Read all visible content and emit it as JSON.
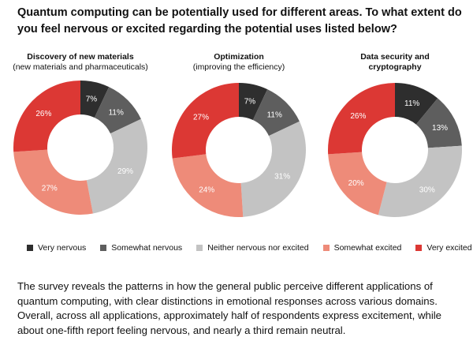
{
  "title": "Quantum computing can be potentially used for different areas. To what extent do you feel nervous or excited regarding the potential uses listed below?",
  "chart_data": [
    {
      "type": "pie",
      "donut": true,
      "title": "Discovery of new materials",
      "subtitle": "(new materials and pharmaceuticals)",
      "categories": [
        "Very nervous",
        "Somewhat nervous",
        "Neither nervous nor excited",
        "Somewhat excited",
        "Very excited"
      ],
      "values": [
        7,
        11,
        29,
        27,
        26
      ],
      "labels": [
        "7%",
        "11%",
        "29%",
        "27%",
        "26%"
      ]
    },
    {
      "type": "pie",
      "donut": true,
      "title": "Optimization",
      "subtitle": "(improving the efficiency)",
      "categories": [
        "Very nervous",
        "Somewhat nervous",
        "Neither nervous nor excited",
        "Somewhat excited",
        "Very excited"
      ],
      "values": [
        7,
        11,
        31,
        24,
        27
      ],
      "labels": [
        "7%",
        "11%",
        "31%",
        "24%",
        "27%"
      ]
    },
    {
      "type": "pie",
      "donut": true,
      "title": "Data security and cryptography",
      "subtitle": "",
      "categories": [
        "Very nervous",
        "Somewhat nervous",
        "Neither nervous nor excited",
        "Somewhat excited",
        "Very excited"
      ],
      "values": [
        11,
        13,
        30,
        20,
        26
      ],
      "labels": [
        "11%",
        "13%",
        "30%",
        "20%",
        "26%"
      ]
    }
  ],
  "legend": [
    {
      "label": "Very nervous",
      "color": "#2e2e2e"
    },
    {
      "label": "Somewhat nervous",
      "color": "#5e5e5e"
    },
    {
      "label": "Neither nervous nor excited",
      "color": "#c3c3c3"
    },
    {
      "label": "Somewhat excited",
      "color": "#ee8b79"
    },
    {
      "label": "Very excited",
      "color": "#dc3834"
    }
  ],
  "paragraph": "The survey reveals the patterns in how the general public perceive different applications of quantum computing, with clear distinctions in emotional responses across various domains. Overall, across all applications, approximately half of respondents express excitement, while about one-fifth report feeling nervous, and nearly a third remain neutral."
}
